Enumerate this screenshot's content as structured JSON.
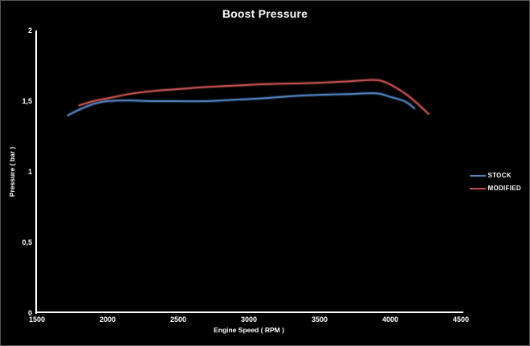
{
  "chart_data": {
    "type": "line",
    "title": "Boost Pressure",
    "xlabel": "Engine Speed ( RPM )",
    "ylabel": "Pressure ( bar )",
    "xlim": [
      1500,
      4500
    ],
    "ylim": [
      0,
      2
    ],
    "x_ticks": [
      1500,
      2000,
      2500,
      3000,
      3500,
      4000,
      4500
    ],
    "x_tick_labels": [
      "1500",
      "2000",
      "2500",
      "3000",
      "3500",
      "4000",
      "4500"
    ],
    "y_ticks": [
      0,
      0.5,
      1,
      1.5,
      2
    ],
    "y_tick_labels": [
      "0",
      "0,5",
      "1",
      "1,5",
      "2"
    ],
    "grid": false,
    "background_color": "#000000",
    "axis_color": "#ffffff",
    "text_color": "#ffffff",
    "legend_position": "right",
    "series": [
      {
        "name": "STOCK",
        "color": "#4f81bd",
        "points": [
          [
            1720,
            1.4
          ],
          [
            1800,
            1.44
          ],
          [
            1900,
            1.48
          ],
          [
            2000,
            1.5
          ],
          [
            2150,
            1.505
          ],
          [
            2300,
            1.5
          ],
          [
            2500,
            1.5
          ],
          [
            2700,
            1.5
          ],
          [
            2900,
            1.51
          ],
          [
            3100,
            1.52
          ],
          [
            3300,
            1.535
          ],
          [
            3500,
            1.545
          ],
          [
            3700,
            1.55
          ],
          [
            3900,
            1.555
          ],
          [
            4000,
            1.53
          ],
          [
            4100,
            1.5
          ],
          [
            4170,
            1.45
          ]
        ]
      },
      {
        "name": "MODIFIED",
        "color": "#c0504d",
        "points": [
          [
            1800,
            1.47
          ],
          [
            1900,
            1.5
          ],
          [
            2000,
            1.52
          ],
          [
            2150,
            1.55
          ],
          [
            2300,
            1.57
          ],
          [
            2500,
            1.585
          ],
          [
            2700,
            1.6
          ],
          [
            2900,
            1.61
          ],
          [
            3100,
            1.62
          ],
          [
            3300,
            1.625
          ],
          [
            3500,
            1.63
          ],
          [
            3700,
            1.64
          ],
          [
            3870,
            1.65
          ],
          [
            3950,
            1.64
          ],
          [
            4050,
            1.59
          ],
          [
            4150,
            1.52
          ],
          [
            4270,
            1.41
          ]
        ]
      }
    ]
  }
}
